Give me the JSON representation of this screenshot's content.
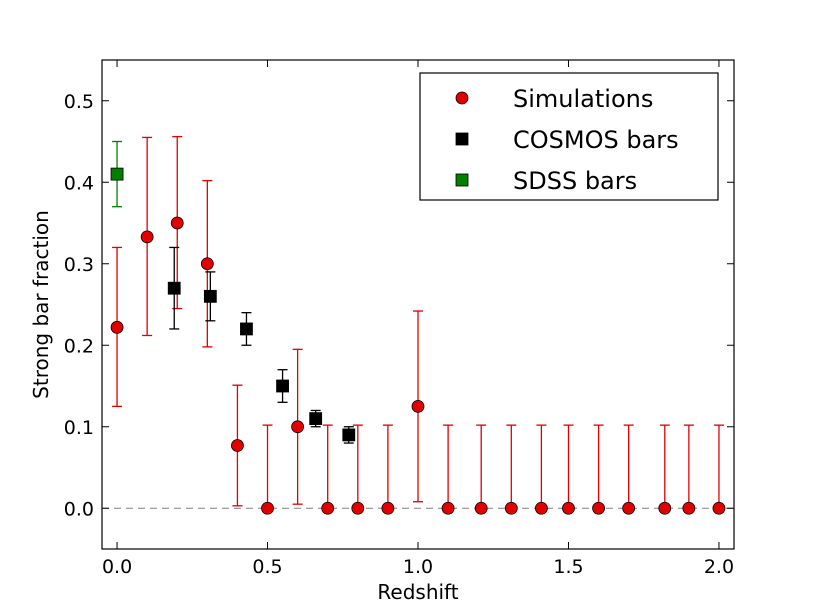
{
  "chart_data": {
    "type": "scatter",
    "title": "",
    "xlabel": "Redshift",
    "ylabel": "Strong bar fraction",
    "xlim": [
      -0.05,
      2.05
    ],
    "ylim": [
      -0.05,
      0.55
    ],
    "xticks": [
      0.0,
      0.5,
      1.0,
      1.5,
      2.0
    ],
    "xtick_labels": [
      "0.0",
      "0.5",
      "1.0",
      "1.5",
      "2.0"
    ],
    "yticks": [
      0.0,
      0.1,
      0.2,
      0.3,
      0.4,
      0.5
    ],
    "ytick_labels": [
      "0.0",
      "0.1",
      "0.2",
      "0.3",
      "0.4",
      "0.5"
    ],
    "grid": false,
    "legend_position": "top-right",
    "reference_line": {
      "y": 0.0,
      "style": "dashed",
      "color": "#808080"
    },
    "series": [
      {
        "name": "Simulations",
        "marker": "circle",
        "color": "#e00000",
        "errcolor": "#e00000",
        "points": [
          {
            "x": 0.0,
            "y": 0.222,
            "lo": 0.125,
            "hi": 0.32
          },
          {
            "x": 0.1,
            "y": 0.333,
            "lo": 0.212,
            "hi": 0.455
          },
          {
            "x": 0.2,
            "y": 0.35,
            "lo": 0.245,
            "hi": 0.456
          },
          {
            "x": 0.3,
            "y": 0.3,
            "lo": 0.198,
            "hi": 0.402
          },
          {
            "x": 0.4,
            "y": 0.077,
            "lo": 0.003,
            "hi": 0.151
          },
          {
            "x": 0.5,
            "y": 0.0,
            "lo": 0.0,
            "hi": 0.102
          },
          {
            "x": 0.6,
            "y": 0.1,
            "lo": 0.005,
            "hi": 0.195
          },
          {
            "x": 0.7,
            "y": 0.0,
            "lo": 0.0,
            "hi": 0.102
          },
          {
            "x": 0.8,
            "y": 0.0,
            "lo": 0.0,
            "hi": 0.102
          },
          {
            "x": 0.9,
            "y": 0.0,
            "lo": 0.0,
            "hi": 0.102
          },
          {
            "x": 1.0,
            "y": 0.125,
            "lo": 0.008,
            "hi": 0.242
          },
          {
            "x": 1.1,
            "y": 0.0,
            "lo": 0.0,
            "hi": 0.102
          },
          {
            "x": 1.21,
            "y": 0.0,
            "lo": 0.0,
            "hi": 0.102
          },
          {
            "x": 1.31,
            "y": 0.0,
            "lo": 0.0,
            "hi": 0.102
          },
          {
            "x": 1.41,
            "y": 0.0,
            "lo": 0.0,
            "hi": 0.102
          },
          {
            "x": 1.5,
            "y": 0.0,
            "lo": 0.0,
            "hi": 0.102
          },
          {
            "x": 1.6,
            "y": 0.0,
            "lo": 0.0,
            "hi": 0.102
          },
          {
            "x": 1.7,
            "y": 0.0,
            "lo": 0.0,
            "hi": 0.102
          },
          {
            "x": 1.82,
            "y": 0.0,
            "lo": 0.0,
            "hi": 0.102
          },
          {
            "x": 1.9,
            "y": 0.0,
            "lo": 0.0,
            "hi": 0.102
          },
          {
            "x": 2.0,
            "y": 0.0,
            "lo": 0.0,
            "hi": 0.102
          }
        ]
      },
      {
        "name": "COSMOS bars",
        "marker": "square",
        "color": "#000000",
        "errcolor": "#000000",
        "points": [
          {
            "x": 0.19,
            "y": 0.27,
            "lo": 0.22,
            "hi": 0.32
          },
          {
            "x": 0.31,
            "y": 0.26,
            "lo": 0.23,
            "hi": 0.29
          },
          {
            "x": 0.43,
            "y": 0.22,
            "lo": 0.2,
            "hi": 0.24
          },
          {
            "x": 0.55,
            "y": 0.15,
            "lo": 0.13,
            "hi": 0.17
          },
          {
            "x": 0.66,
            "y": 0.11,
            "lo": 0.1,
            "hi": 0.12
          },
          {
            "x": 0.77,
            "y": 0.09,
            "lo": 0.08,
            "hi": 0.1
          }
        ]
      },
      {
        "name": "SDSS bars",
        "marker": "square",
        "color": "#008000",
        "errcolor": "#008000",
        "points": [
          {
            "x": 0.0,
            "y": 0.41,
            "lo": 0.37,
            "hi": 0.45
          }
        ]
      }
    ]
  }
}
